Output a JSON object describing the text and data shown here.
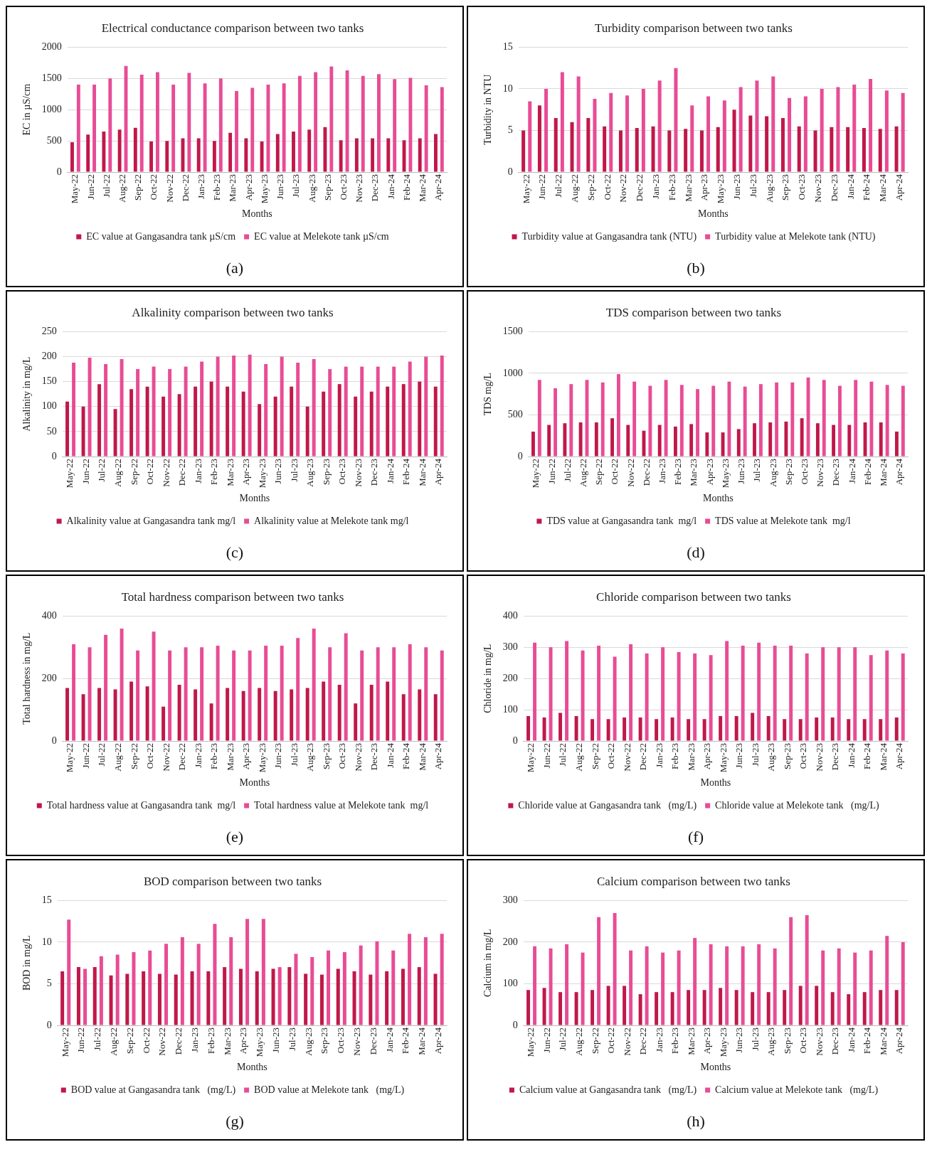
{
  "chart_data": [
    {
      "type": "bar",
      "title": "Electrical conductance comparison between two tanks",
      "xlabel": "Months",
      "ylabel": "EC in µS/cm",
      "categories": [
        "May-22",
        "Jun-22",
        "Jul-22",
        "Aug-22",
        "Sep-22",
        "Oct-22",
        "Nov-22",
        "Dec-22",
        "Jan-23",
        "Feb-23",
        "Mar-23",
        "Apr-23",
        "May-23",
        "Jun-23",
        "Jul-23",
        "Aug-23",
        "Sep-23",
        "Oct-23",
        "Nov-23",
        "Dec-23",
        "Jan-24",
        "Feb-24",
        "Mar-24",
        "Apr-24"
      ],
      "series": [
        {
          "name": "EC value at Gangasandra tank µS/cm",
          "color": "#c0184a",
          "values": [
            480,
            600,
            650,
            680,
            710,
            490,
            500,
            540,
            540,
            500,
            630,
            540,
            490,
            610,
            650,
            680,
            720,
            510,
            540,
            540,
            540,
            510,
            540,
            610
          ]
        },
        {
          "name": "EC value at Melekote tank µS/cm",
          "color": "#e84c96",
          "values": [
            1400,
            1400,
            1500,
            1700,
            1560,
            1600,
            1400,
            1590,
            1420,
            1500,
            1300,
            1350,
            1400,
            1420,
            1540,
            1600,
            1690,
            1630,
            1540,
            1570,
            1490,
            1510,
            1390,
            1360
          ]
        }
      ],
      "ylim": [
        0,
        2000
      ],
      "yticks": [
        0,
        500,
        1000,
        1500,
        2000
      ],
      "grid": "y",
      "legend": "bottom",
      "annotations": [
        "(a)"
      ]
    },
    {
      "type": "bar",
      "title": "Turbidity comparison between two tanks",
      "xlabel": "Months",
      "ylabel": "Turbidity in NTU",
      "categories": [
        "May-22",
        "Jun-22",
        "Jul-22",
        "Aug-22",
        "Sep-22",
        "Oct-22",
        "Nov-22",
        "Dec-22",
        "Jan-23",
        "Feb-23",
        "Mar-23",
        "Apr-23",
        "May-23",
        "Jun-23",
        "Jul-23",
        "Aug-23",
        "Sep-23",
        "Oct-23",
        "Nov-23",
        "Dec-23",
        "Jan-24",
        "Feb-24",
        "Mar-24",
        "Apr-24"
      ],
      "series": [
        {
          "name": "Turbidity value at Gangasandra tank (NTU)",
          "color": "#c0184a",
          "values": [
            5,
            8,
            6.5,
            6,
            6.5,
            5.5,
            5,
            5.3,
            5.5,
            5,
            5.2,
            5,
            5.4,
            7.5,
            6.8,
            6.7,
            6.5,
            5.5,
            5,
            5.4,
            5.4,
            5.3,
            5.2,
            5.5
          ]
        },
        {
          "name": "Turbidity value at Melekote tank (NTU)",
          "color": "#e84c96",
          "values": [
            8.5,
            10,
            12,
            11.5,
            8.8,
            9.5,
            9.2,
            10,
            11,
            12.5,
            8,
            9.1,
            8.6,
            10.2,
            11,
            11.5,
            8.9,
            9.1,
            10,
            10.2,
            10.5,
            11.2,
            9.8,
            9.5
          ]
        }
      ],
      "ylim": [
        0,
        15
      ],
      "yticks": [
        0,
        5,
        10,
        15
      ],
      "grid": "y",
      "legend": "bottom",
      "annotations": [
        "(b)"
      ]
    },
    {
      "type": "bar",
      "title": "Alkalinity comparison between two tanks",
      "xlabel": "Months",
      "ylabel": "Alkalinity in mg/L",
      "categories": [
        "May-22",
        "Jun-22",
        "Jul-22",
        "Aug-22",
        "Sep-22",
        "Oct-22",
        "Nov-22",
        "Dec-22",
        "Jan-23",
        "Feb-23",
        "Mar-23",
        "Apr-23",
        "May-23",
        "Jun-23",
        "Jul-23",
        "Aug-23",
        "Sep-23",
        "Oct-23",
        "Nov-23",
        "Dec-23",
        "Jan-24",
        "Feb-24",
        "Mar-24",
        "Apr-24"
      ],
      "series": [
        {
          "name": "Alkalinity value at Gangasandra tank mg/l",
          "color": "#c0184a",
          "values": [
            110,
            100,
            145,
            95,
            135,
            140,
            120,
            125,
            140,
            150,
            140,
            130,
            105,
            120,
            140,
            100,
            130,
            145,
            120,
            130,
            140,
            145,
            150,
            140
          ]
        },
        {
          "name": "Alkalinity value at Melekote tank mg/l",
          "color": "#e84c96",
          "values": [
            188,
            198,
            185,
            195,
            175,
            180,
            175,
            180,
            190,
            200,
            202,
            204,
            185,
            200,
            188,
            195,
            175,
            180,
            180,
            180,
            180,
            190,
            200,
            202
          ]
        }
      ],
      "ylim": [
        0,
        250
      ],
      "yticks": [
        0,
        50,
        100,
        150,
        200,
        250
      ],
      "grid": "y",
      "legend": "bottom",
      "annotations": [
        "(c)"
      ]
    },
    {
      "type": "bar",
      "title": "TDS comparison between two tanks",
      "xlabel": "Months",
      "ylabel": "TDS mg/L",
      "categories": [
        "May-22",
        "Jun-22",
        "Jul-22",
        "Aug-22",
        "Sep-22",
        "Oct-22",
        "Nov-22",
        "Dec-22",
        "Jan-23",
        "Feb-23",
        "Mar-23",
        "Apr-23",
        "May-23",
        "Jun-23",
        "Jul-23",
        "Aug-23",
        "Sep-23",
        "Oct-23",
        "Nov-23",
        "Dec-23",
        "Jan-24",
        "Feb-24",
        "Mar-24",
        "Apr-24"
      ],
      "series": [
        {
          "name": "TDS value at Gangasandra tank  mg/l",
          "color": "#c0184a",
          "values": [
            300,
            380,
            400,
            410,
            410,
            460,
            380,
            310,
            380,
            360,
            390,
            290,
            290,
            330,
            400,
            410,
            420,
            460,
            400,
            380,
            380,
            410,
            410,
            300
          ]
        },
        {
          "name": "TDS value at Melekote tank  mg/l",
          "color": "#e84c96",
          "values": [
            920,
            820,
            870,
            920,
            890,
            990,
            900,
            850,
            920,
            860,
            810,
            850,
            900,
            840,
            870,
            890,
            890,
            950,
            920,
            850,
            920,
            900,
            860,
            850
          ]
        }
      ],
      "ylim": [
        0,
        1500
      ],
      "yticks": [
        0,
        500,
        1000,
        1500
      ],
      "grid": "y",
      "legend": "bottom",
      "annotations": [
        "(d)"
      ]
    },
    {
      "type": "bar",
      "title": "Total hardness comparison between two tanks",
      "xlabel": "Months",
      "ylabel": "Total hardness in mg/L",
      "categories": [
        "May-22",
        "Jun-22",
        "Jul-22",
        "Aug-22",
        "Sep-22",
        "Oct-22",
        "Nov-22",
        "Dec-22",
        "Jan-23",
        "Feb-23",
        "Mar-23",
        "Apr-23",
        "May-23",
        "Jun-23",
        "Jul-23",
        "Aug-23",
        "Sep-23",
        "Oct-23",
        "Nov-23",
        "Dec-23",
        "Jan-24",
        "Feb-24",
        "Mar-24",
        "Apr-24"
      ],
      "series": [
        {
          "name": "Total hardness value at Gangasandra tank  mg/l",
          "color": "#c0184a",
          "values": [
            170,
            150,
            170,
            165,
            190,
            175,
            110,
            180,
            165,
            120,
            170,
            160,
            170,
            160,
            165,
            170,
            190,
            180,
            120,
            180,
            190,
            150,
            165,
            150
          ]
        },
        {
          "name": "Total hardness value at Melekote tank  mg/l",
          "color": "#e84c96",
          "values": [
            310,
            300,
            340,
            360,
            290,
            350,
            290,
            300,
            300,
            305,
            290,
            290,
            305,
            305,
            330,
            360,
            300,
            345,
            290,
            300,
            300,
            310,
            300,
            290
          ]
        }
      ],
      "ylim": [
        0,
        400
      ],
      "yticks": [
        0,
        200,
        400
      ],
      "grid": "y",
      "legend": "bottom",
      "annotations": [
        "(e)"
      ]
    },
    {
      "type": "bar",
      "title": "Chloride comparison between two tanks",
      "xlabel": "Months",
      "ylabel": "Chloride in mg/L",
      "categories": [
        "May-22",
        "Jun-22",
        "Jul-22",
        "Aug-22",
        "Sep-22",
        "Oct-22",
        "Nov-22",
        "Dec-22",
        "Jan-23",
        "Feb-23",
        "Mar-23",
        "Apr-23",
        "May-23",
        "Jun-23",
        "Jul-23",
        "Aug-23",
        "Sep-23",
        "Oct-23",
        "Nov-23",
        "Dec-23",
        "Jan-24",
        "Feb-24",
        "Mar-24",
        "Apr-24"
      ],
      "series": [
        {
          "name": "Chloride value at Gangasandra tank   (mg/L)",
          "color": "#c0184a",
          "values": [
            80,
            75,
            90,
            80,
            70,
            70,
            75,
            75,
            70,
            75,
            70,
            70,
            80,
            80,
            90,
            80,
            70,
            70,
            75,
            75,
            70,
            70,
            70,
            75
          ]
        },
        {
          "name": "Chloride value at Melekote tank   (mg/L)",
          "color": "#e84c96",
          "values": [
            315,
            300,
            320,
            290,
            305,
            270,
            310,
            280,
            300,
            285,
            280,
            275,
            320,
            305,
            315,
            305,
            305,
            280,
            300,
            300,
            300,
            275,
            290,
            280
          ]
        }
      ],
      "ylim": [
        0,
        400
      ],
      "yticks": [
        0,
        100,
        200,
        300,
        400
      ],
      "grid": "y",
      "legend": "bottom",
      "annotations": [
        "(f)"
      ]
    },
    {
      "type": "bar",
      "title": "BOD comparison between two tanks",
      "xlabel": "Months",
      "ylabel": "BOD in mg/L",
      "categories": [
        "May-22",
        "Jun-22",
        "Jul-22",
        "Aug-22",
        "Sep-22",
        "Oct-22",
        "Nov-22",
        "Dec-22",
        "Jan-23",
        "Feb-23",
        "Mar-23",
        "Apr-23",
        "May-23",
        "Jun-23",
        "Jul-23",
        "Aug-23",
        "Sep-23",
        "Oct-23",
        "Nov-23",
        "Dec-23",
        "Jan-24",
        "Feb-24",
        "Mar-24",
        "Apr-24"
      ],
      "series": [
        {
          "name": "BOD value at Gangasandra tank   (mg/L)",
          "color": "#c0184a",
          "values": [
            6.5,
            7,
            7,
            6,
            6.2,
            6.5,
            6.2,
            6.1,
            6.5,
            6.5,
            7,
            6.8,
            6.5,
            6.8,
            7,
            6.2,
            6.1,
            6.8,
            6.5,
            6.1,
            6.5,
            6.8,
            7,
            6.2
          ]
        },
        {
          "name": "BOD value at Melekote tank   (mg/L)",
          "color": "#e84c96",
          "values": [
            12.7,
            6.8,
            8.3,
            8.5,
            8.8,
            9,
            9.8,
            10.6,
            9.8,
            12.2,
            10.6,
            12.8,
            12.8,
            7,
            8.6,
            8.2,
            9,
            8.8,
            9.6,
            10.1,
            9,
            11,
            10.6,
            11
          ]
        }
      ],
      "ylim": [
        0,
        15
      ],
      "yticks": [
        0,
        5,
        10,
        15
      ],
      "grid": "y",
      "legend": "bottom",
      "annotations": [
        "(g)"
      ]
    },
    {
      "type": "bar",
      "title": "Calcium comparison between two tanks",
      "xlabel": "Months",
      "ylabel": "Calcium in mg/L",
      "categories": [
        "May-22",
        "Jun-22",
        "Jul-22",
        "Aug-22",
        "Sep-22",
        "Oct-22",
        "Nov-22",
        "Dec-22",
        "Jan-23",
        "Feb-23",
        "Mar-23",
        "Apr-23",
        "May-23",
        "Jun-23",
        "Jul-23",
        "Aug-23",
        "Sep-23",
        "Oct-23",
        "Nov-23",
        "Dec-23",
        "Jan-24",
        "Feb-24",
        "Mar-24",
        "Apr-24"
      ],
      "series": [
        {
          "name": "Calcium value at Gangasandra tank   (mg/L)",
          "color": "#c0184a",
          "values": [
            85,
            90,
            80,
            80,
            85,
            95,
            95,
            75,
            80,
            80,
            85,
            85,
            90,
            85,
            80,
            80,
            85,
            95,
            95,
            80,
            75,
            80,
            85,
            85
          ]
        },
        {
          "name": "Calcium value at Melekote tank   (mg/L)",
          "color": "#e84c96",
          "values": [
            190,
            185,
            195,
            175,
            260,
            270,
            180,
            190,
            175,
            180,
            210,
            195,
            190,
            190,
            195,
            185,
            260,
            265,
            180,
            185,
            175,
            180,
            215,
            200
          ]
        }
      ],
      "ylim": [
        0,
        300
      ],
      "yticks": [
        0,
        100,
        200,
        300
      ],
      "grid": "y",
      "legend": "bottom",
      "annotations": [
        "(h)"
      ]
    }
  ]
}
